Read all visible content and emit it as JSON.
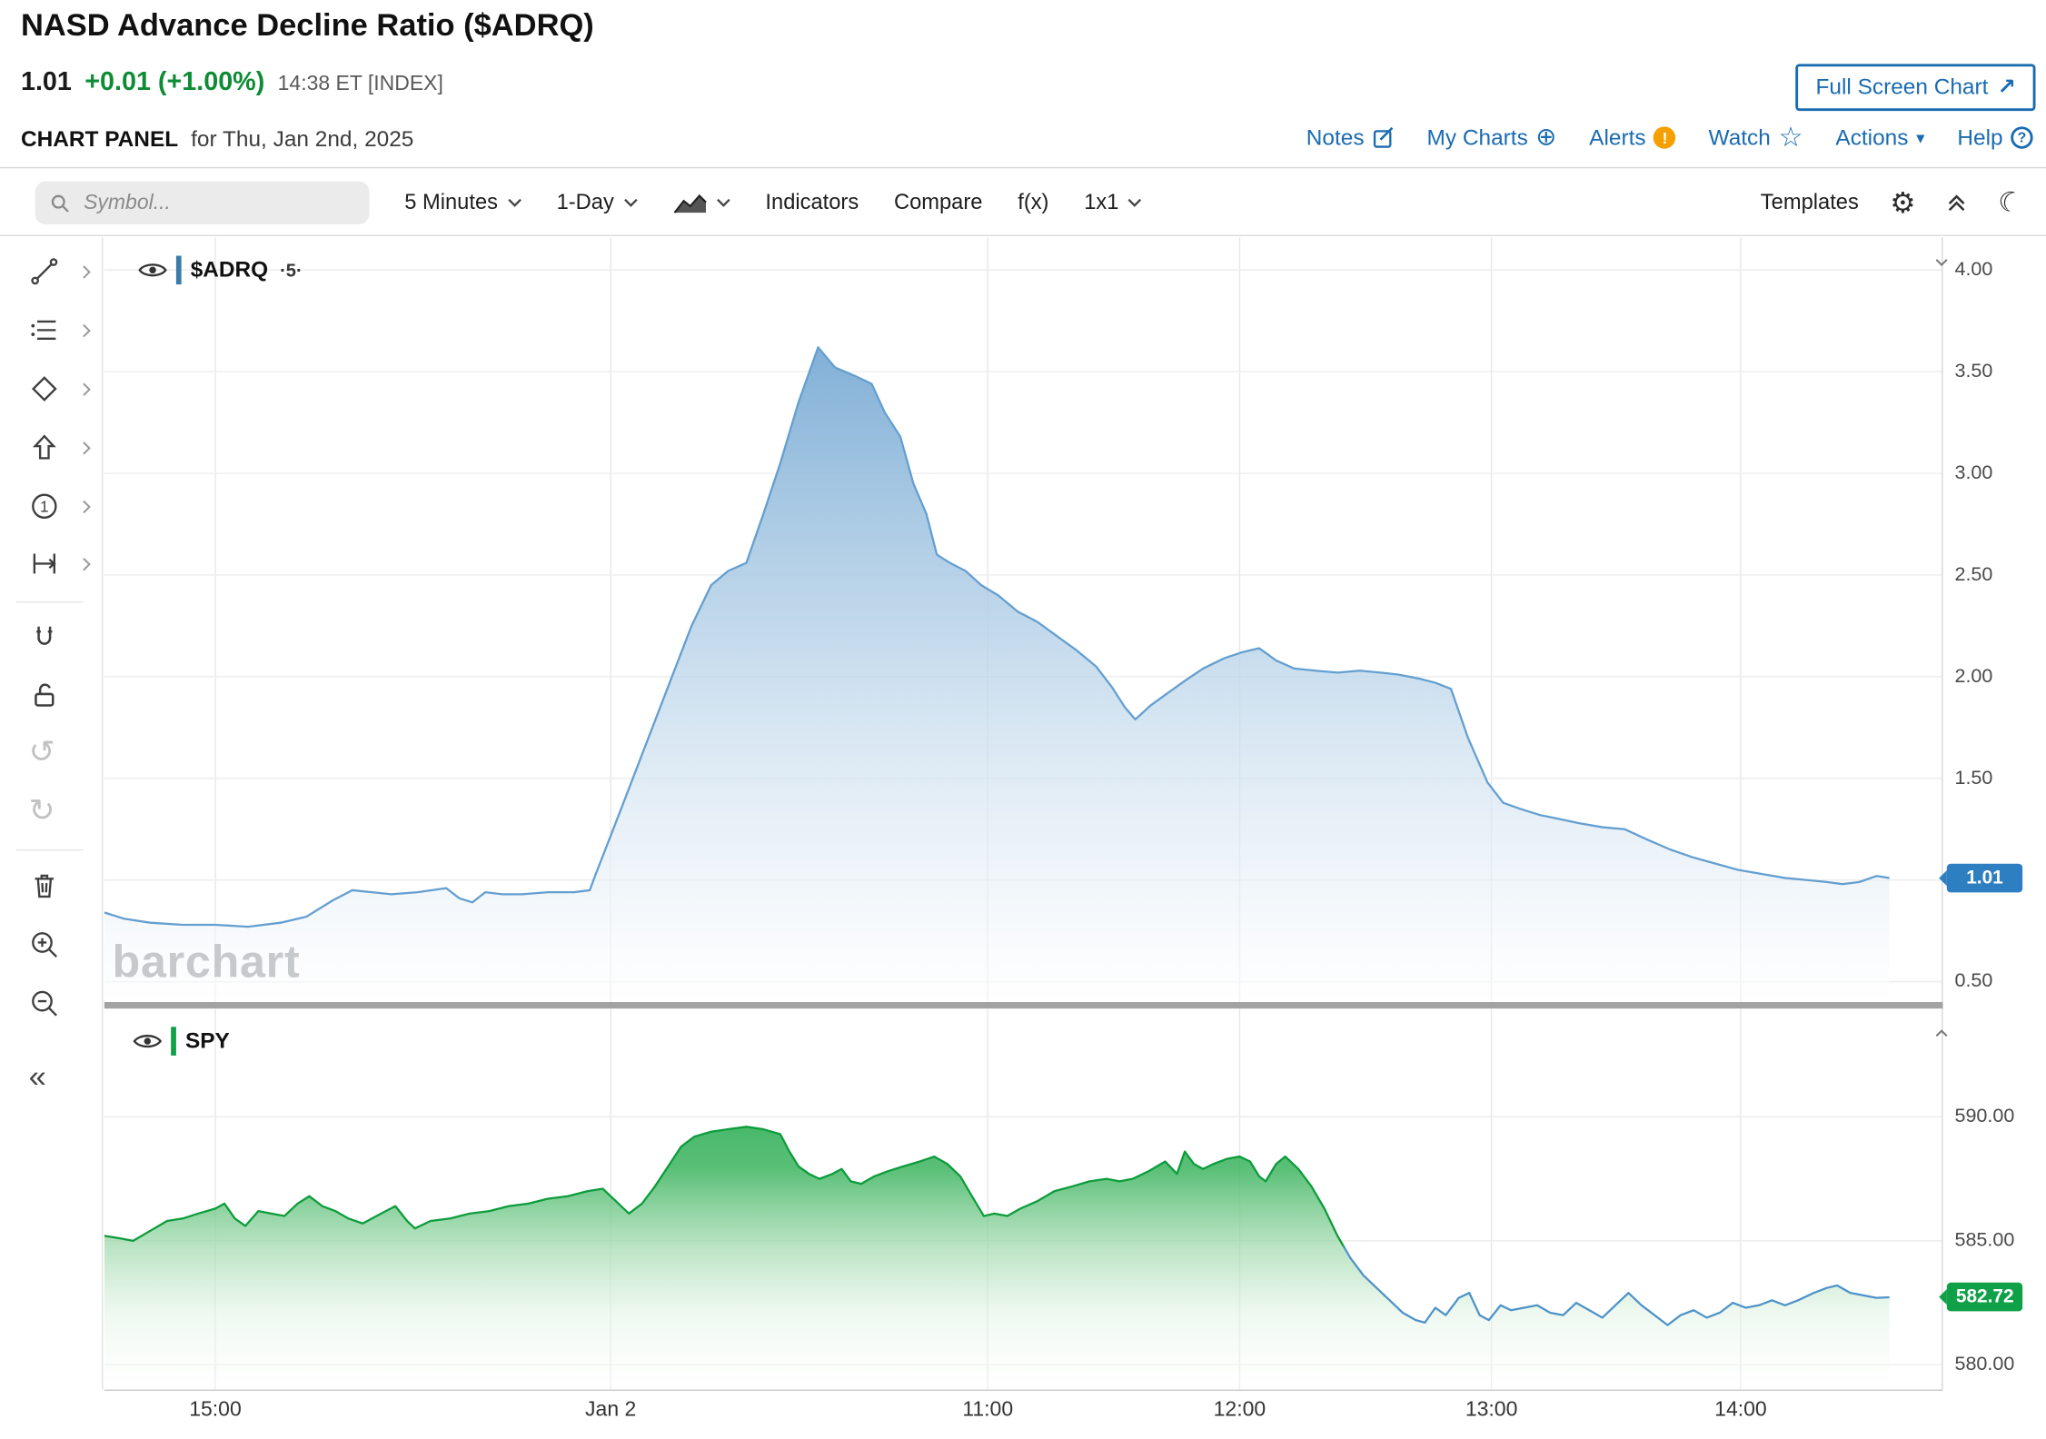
{
  "header": {
    "title": "NASD Advance Decline Ratio ($ADRQ)",
    "quote": {
      "last": "1.01",
      "change": "+0.01 (+1.00%)",
      "time": "14:38 ET [INDEX]"
    },
    "fullscreen_button": "Full Screen Chart",
    "panel_label": "CHART PANEL",
    "panel_date": "for Thu, Jan 2nd, 2025",
    "links": {
      "notes": "Notes",
      "my_charts": "My Charts",
      "alerts": "Alerts",
      "watch": "Watch",
      "actions": "Actions",
      "help": "Help"
    }
  },
  "toolbar": {
    "search_placeholder": "Symbol...",
    "period": "5 Minutes",
    "range": "1-Day",
    "indicators": "Indicators",
    "compare": "Compare",
    "fx": "f(x)",
    "grid": "1x1",
    "templates": "Templates"
  },
  "icons": {
    "gear": "⚙",
    "moon": "☾",
    "star": "☆",
    "circle_plus": "⊕",
    "undo": "↺",
    "redo": "↻",
    "actions_caret": "▾",
    "ne_arrow": "↗",
    "collapse_left": "«",
    "alert_mark": "!",
    "help_mark": "?"
  },
  "colors": {
    "link_blue": "#1a6bb0",
    "change_green": "#0e8c35",
    "alert_orange": "#f59f00",
    "adrq_line": "#649fd0",
    "adrq_badge": "#2e7fc2",
    "spy_green": "#0d9c3c",
    "spy_blue": "#4f93c9",
    "spy_badge": "#0fa048"
  },
  "watermark": "barchart",
  "x_axis": {
    "labels": [
      "15:00",
      "Jan 2",
      "11:00",
      "12:00",
      "13:00",
      "14:00"
    ],
    "positions": [
      85,
      388,
      677,
      870,
      1063,
      1254
    ]
  },
  "chart_data": [
    {
      "type": "area",
      "name": "$ADRQ",
      "interval_label": "·5·",
      "title": "NASD Advance Decline Ratio intraday (5-minute)",
      "ymin": 0.4,
      "ymax": 4.16,
      "yticks": [
        "4.00",
        "3.50",
        "3.00",
        "2.50",
        "2.00",
        "1.50",
        "0.50"
      ],
      "ytick_values": [
        4.0,
        3.5,
        3.0,
        2.5,
        2.0,
        1.5,
        0.5
      ],
      "grid_values": [
        4.0,
        3.5,
        3.0,
        2.5,
        2.0,
        1.5,
        1.0,
        0.5
      ],
      "last_value": 1.01,
      "last_label": "1.01",
      "points": [
        [
          0,
          0.84
        ],
        [
          15,
          0.81
        ],
        [
          35,
          0.79
        ],
        [
          60,
          0.78
        ],
        [
          85,
          0.78
        ],
        [
          110,
          0.77
        ],
        [
          135,
          0.79
        ],
        [
          155,
          0.82
        ],
        [
          175,
          0.9
        ],
        [
          190,
          0.95
        ],
        [
          205,
          0.94
        ],
        [
          220,
          0.93
        ],
        [
          240,
          0.94
        ],
        [
          262,
          0.96
        ],
        [
          272,
          0.91
        ],
        [
          282,
          0.89
        ],
        [
          292,
          0.94
        ],
        [
          305,
          0.93
        ],
        [
          320,
          0.93
        ],
        [
          340,
          0.94
        ],
        [
          360,
          0.94
        ],
        [
          372,
          0.95
        ],
        [
          376,
          1.02
        ],
        [
          390,
          1.25
        ],
        [
          405,
          1.5
        ],
        [
          420,
          1.75
        ],
        [
          435,
          2.0
        ],
        [
          450,
          2.25
        ],
        [
          465,
          2.45
        ],
        [
          478,
          2.52
        ],
        [
          492,
          2.56
        ],
        [
          505,
          2.8
        ],
        [
          518,
          3.05
        ],
        [
          532,
          3.35
        ],
        [
          547,
          3.62
        ],
        [
          560,
          3.52
        ],
        [
          575,
          3.48
        ],
        [
          588,
          3.44
        ],
        [
          598,
          3.3
        ],
        [
          610,
          3.18
        ],
        [
          620,
          2.95
        ],
        [
          630,
          2.8
        ],
        [
          638,
          2.6
        ],
        [
          648,
          2.56
        ],
        [
          660,
          2.52
        ],
        [
          672,
          2.45
        ],
        [
          685,
          2.4
        ],
        [
          700,
          2.32
        ],
        [
          715,
          2.27
        ],
        [
          730,
          2.2
        ],
        [
          745,
          2.13
        ],
        [
          760,
          2.05
        ],
        [
          772,
          1.95
        ],
        [
          782,
          1.85
        ],
        [
          790,
          1.79
        ],
        [
          802,
          1.86
        ],
        [
          815,
          1.92
        ],
        [
          828,
          1.98
        ],
        [
          842,
          2.04
        ],
        [
          858,
          2.09
        ],
        [
          872,
          2.12
        ],
        [
          885,
          2.14
        ],
        [
          898,
          2.08
        ],
        [
          912,
          2.04
        ],
        [
          928,
          2.03
        ],
        [
          945,
          2.02
        ],
        [
          962,
          2.03
        ],
        [
          978,
          2.02
        ],
        [
          992,
          2.01
        ],
        [
          1008,
          1.99
        ],
        [
          1020,
          1.97
        ],
        [
          1032,
          1.94
        ],
        [
          1045,
          1.7
        ],
        [
          1060,
          1.48
        ],
        [
          1072,
          1.38
        ],
        [
          1085,
          1.35
        ],
        [
          1100,
          1.32
        ],
        [
          1115,
          1.3
        ],
        [
          1130,
          1.28
        ],
        [
          1148,
          1.26
        ],
        [
          1165,
          1.25
        ],
        [
          1182,
          1.2
        ],
        [
          1200,
          1.15
        ],
        [
          1218,
          1.11
        ],
        [
          1235,
          1.08
        ],
        [
          1252,
          1.05
        ],
        [
          1270,
          1.03
        ],
        [
          1288,
          1.01
        ],
        [
          1305,
          1.0
        ],
        [
          1320,
          0.99
        ],
        [
          1332,
          0.98
        ],
        [
          1345,
          0.99
        ],
        [
          1358,
          1.02
        ],
        [
          1368,
          1.01
        ]
      ]
    },
    {
      "type": "area",
      "name": "SPY",
      "title": "SPY comparison (5-minute)",
      "ymin": 579.0,
      "ymax": 594.37,
      "yticks": [
        "590.00",
        "585.00",
        "580.00"
      ],
      "ytick_values": [
        590.0,
        585.0,
        580.0
      ],
      "grid_values": [
        590.0,
        585.0,
        580.0
      ],
      "last_value": 582.72,
      "last_label": "582.72",
      "points": [
        [
          0,
          585.2
        ],
        [
          12,
          585.1
        ],
        [
          22,
          585.0
        ],
        [
          35,
          585.4
        ],
        [
          48,
          585.8
        ],
        [
          60,
          585.9
        ],
        [
          72,
          586.1
        ],
        [
          85,
          586.3
        ],
        [
          92,
          586.5
        ],
        [
          100,
          585.9
        ],
        [
          108,
          585.6
        ],
        [
          118,
          586.2
        ],
        [
          128,
          586.1
        ],
        [
          138,
          586.0
        ],
        [
          148,
          586.5
        ],
        [
          157,
          586.8
        ],
        [
          167,
          586.4
        ],
        [
          177,
          586.2
        ],
        [
          187,
          585.9
        ],
        [
          198,
          585.7
        ],
        [
          212,
          586.1
        ],
        [
          223,
          586.4
        ],
        [
          232,
          585.8
        ],
        [
          238,
          585.5
        ],
        [
          250,
          585.8
        ],
        [
          265,
          585.9
        ],
        [
          280,
          586.1
        ],
        [
          295,
          586.2
        ],
        [
          310,
          586.4
        ],
        [
          325,
          586.5
        ],
        [
          340,
          586.7
        ],
        [
          355,
          586.8
        ],
        [
          370,
          587.0
        ],
        [
          382,
          587.1
        ],
        [
          392,
          586.6
        ],
        [
          402,
          586.1
        ],
        [
          412,
          586.5
        ],
        [
          422,
          587.2
        ],
        [
          432,
          588.0
        ],
        [
          442,
          588.8
        ],
        [
          452,
          589.2
        ],
        [
          465,
          589.4
        ],
        [
          478,
          589.5
        ],
        [
          492,
          589.6
        ],
        [
          505,
          589.5
        ],
        [
          518,
          589.3
        ],
        [
          525,
          588.6
        ],
        [
          532,
          588.0
        ],
        [
          540,
          587.7
        ],
        [
          548,
          587.5
        ],
        [
          558,
          587.7
        ],
        [
          565,
          587.9
        ],
        [
          572,
          587.4
        ],
        [
          580,
          587.3
        ],
        [
          590,
          587.6
        ],
        [
          600,
          587.8
        ],
        [
          612,
          588.0
        ],
        [
          625,
          588.2
        ],
        [
          636,
          588.4
        ],
        [
          646,
          588.1
        ],
        [
          656,
          587.6
        ],
        [
          666,
          586.7
        ],
        [
          674,
          586.0
        ],
        [
          682,
          586.1
        ],
        [
          692,
          586.0
        ],
        [
          702,
          586.3
        ],
        [
          715,
          586.6
        ],
        [
          728,
          587.0
        ],
        [
          742,
          587.2
        ],
        [
          755,
          587.4
        ],
        [
          768,
          587.5
        ],
        [
          778,
          587.4
        ],
        [
          788,
          587.5
        ],
        [
          800,
          587.8
        ],
        [
          813,
          588.2
        ],
        [
          822,
          587.7
        ],
        [
          828,
          588.6
        ],
        [
          835,
          588.1
        ],
        [
          842,
          587.9
        ],
        [
          850,
          588.1
        ],
        [
          860,
          588.3
        ],
        [
          870,
          588.4
        ],
        [
          878,
          588.2
        ],
        [
          885,
          587.6
        ],
        [
          890,
          587.4
        ],
        [
          898,
          588.1
        ],
        [
          905,
          588.4
        ],
        [
          915,
          587.9
        ],
        [
          925,
          587.2
        ],
        [
          935,
          586.3
        ],
        [
          945,
          585.2
        ],
        [
          955,
          584.3
        ],
        [
          965,
          583.6
        ],
        [
          975,
          583.1
        ],
        [
          985,
          582.6
        ],
        [
          995,
          582.1
        ],
        [
          1005,
          581.8
        ],
        [
          1012,
          581.7
        ],
        [
          1020,
          582.3
        ],
        [
          1028,
          582.0
        ],
        [
          1038,
          582.7
        ],
        [
          1046,
          582.9
        ],
        [
          1054,
          582.0
        ],
        [
          1061,
          581.8
        ],
        [
          1070,
          582.4
        ],
        [
          1078,
          582.2
        ],
        [
          1088,
          582.3
        ],
        [
          1098,
          582.4
        ],
        [
          1108,
          582.1
        ],
        [
          1118,
          582.0
        ],
        [
          1128,
          582.5
        ],
        [
          1138,
          582.2
        ],
        [
          1148,
          581.9
        ],
        [
          1158,
          582.4
        ],
        [
          1168,
          582.9
        ],
        [
          1178,
          582.4
        ],
        [
          1188,
          582.0
        ],
        [
          1198,
          581.6
        ],
        [
          1208,
          582.0
        ],
        [
          1218,
          582.2
        ],
        [
          1228,
          581.9
        ],
        [
          1238,
          582.1
        ],
        [
          1248,
          582.5
        ],
        [
          1258,
          582.3
        ],
        [
          1268,
          582.4
        ],
        [
          1278,
          582.6
        ],
        [
          1288,
          582.4
        ],
        [
          1298,
          582.6
        ],
        [
          1310,
          582.9
        ],
        [
          1320,
          583.1
        ],
        [
          1328,
          583.2
        ],
        [
          1338,
          582.9
        ],
        [
          1348,
          582.8
        ],
        [
          1358,
          582.7
        ],
        [
          1368,
          582.72
        ]
      ]
    }
  ]
}
